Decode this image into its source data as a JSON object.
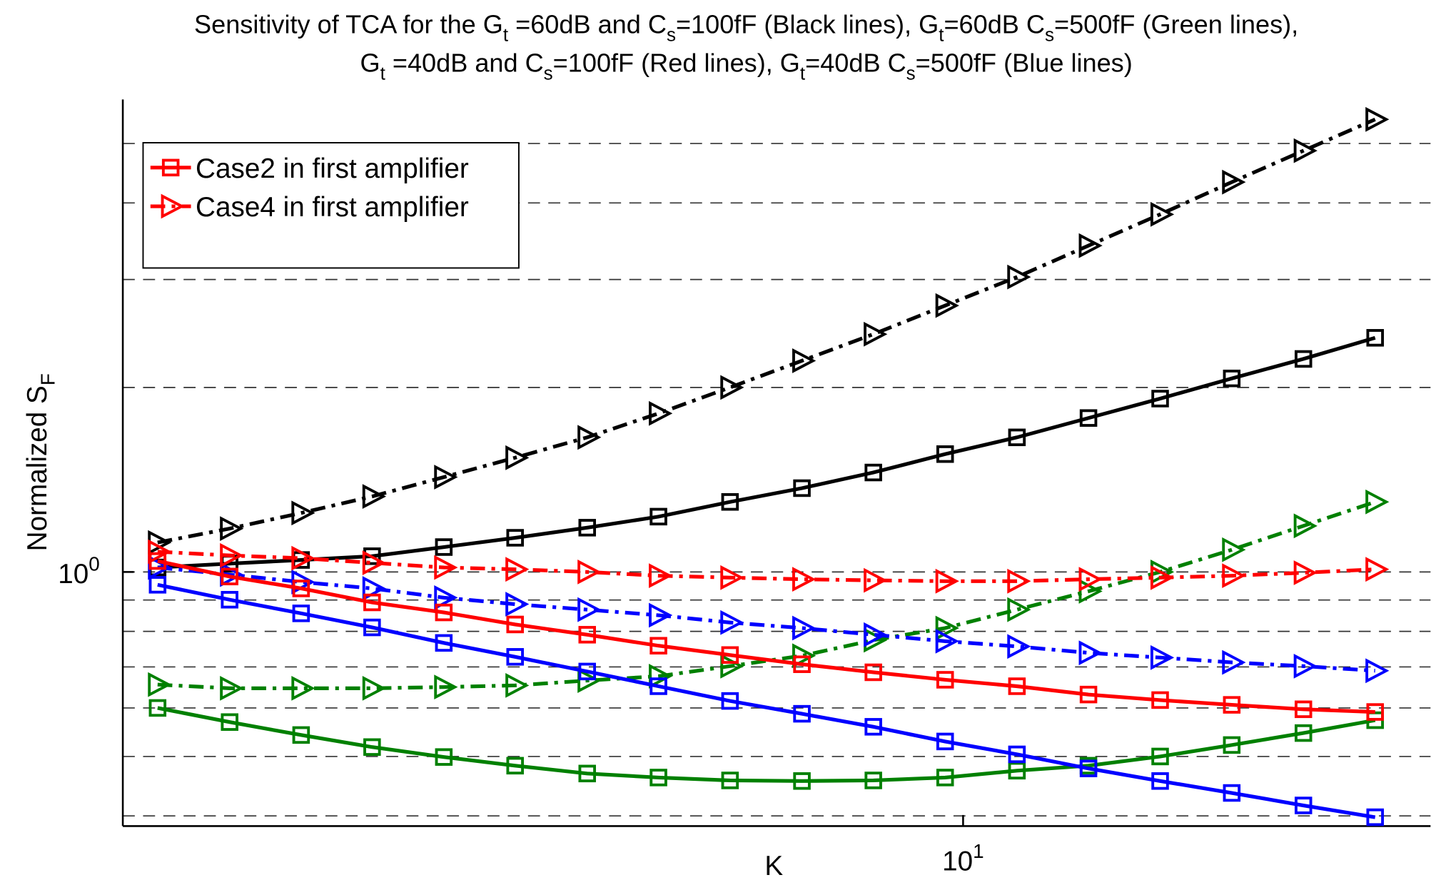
{
  "chart_data": {
    "type": "line",
    "title": [
      [
        "Sensitivity of TCA for the G",
        "t",
        " =60dB and C",
        "s",
        "=100fF (Black lines), G",
        "t",
        "=60dB C",
        "s",
        "=500fF (Green lines),"
      ],
      [
        "G",
        "t",
        " =40dB and C",
        "s",
        "=100fF (Red lines), G",
        "t",
        "=40dB C",
        "s",
        "=500fF (Blue lines)"
      ]
    ],
    "x_label": "K",
    "y_label": [
      "Normalized S",
      "F"
    ],
    "x_scale": "log",
    "y_scale": "log",
    "xlim": [
      1,
      36
    ],
    "ylim": [
      0.385,
      5.9
    ],
    "xticks": [
      {
        "value": 10,
        "label": [
          "10",
          "1"
        ]
      }
    ],
    "yticks": [
      {
        "value": 1,
        "label": [
          "10",
          "0"
        ]
      }
    ],
    "grid_y": [
      0.4,
      0.5,
      0.6,
      0.7,
      0.8,
      0.9,
      1,
      2,
      3,
      4,
      5
    ],
    "legend_position": "upper left",
    "x": [
      1.1,
      1.34,
      1.63,
      1.98,
      2.41,
      2.93,
      3.57,
      4.34,
      5.28,
      6.43,
      7.82,
      9.52,
      11.59,
      14.1,
      17.16,
      20.88,
      25.41,
      30.93
    ],
    "series": [
      {
        "color": "#000000",
        "line_style": "dashdot",
        "marker": "triangle-right",
        "values": [
          1.117,
          1.177,
          1.248,
          1.328,
          1.428,
          1.536,
          1.658,
          1.814,
          2.0,
          2.211,
          2.443,
          2.72,
          3.028,
          3.407,
          3.832,
          4.325,
          4.867,
          5.474
        ]
      },
      {
        "color": "#000000",
        "line_style": "solid",
        "marker": "square",
        "values": [
          1.017,
          1.032,
          1.046,
          1.061,
          1.098,
          1.137,
          1.181,
          1.231,
          1.301,
          1.37,
          1.453,
          1.557,
          1.658,
          1.783,
          1.918,
          2.069,
          2.226,
          2.41
        ]
      },
      {
        "color": "#008000",
        "line_style": "dashdot",
        "marker": "triangle-right",
        "values": [
          0.655,
          0.646,
          0.646,
          0.646,
          0.649,
          0.653,
          0.665,
          0.676,
          0.702,
          0.73,
          0.774,
          0.81,
          0.868,
          0.93,
          1.0,
          1.087,
          1.189,
          1.301
        ]
      },
      {
        "color": "#008000",
        "line_style": "solid",
        "marker": "square",
        "values": [
          0.6,
          0.569,
          0.542,
          0.518,
          0.499,
          0.483,
          0.469,
          0.462,
          0.457,
          0.456,
          0.457,
          0.462,
          0.474,
          0.483,
          0.5,
          0.522,
          0.546,
          0.573
        ]
      },
      {
        "color": "#0000ff",
        "line_style": "dashdot",
        "marker": "triangle-right",
        "values": [
          1.017,
          0.99,
          0.963,
          0.94,
          0.908,
          0.886,
          0.868,
          0.85,
          0.827,
          0.81,
          0.79,
          0.771,
          0.756,
          0.738,
          0.725,
          0.712,
          0.702,
          0.69
        ]
      },
      {
        "color": "#0000ff",
        "line_style": "solid",
        "marker": "square",
        "values": [
          0.953,
          0.901,
          0.856,
          0.812,
          0.766,
          0.727,
          0.688,
          0.651,
          0.616,
          0.587,
          0.559,
          0.529,
          0.504,
          0.478,
          0.456,
          0.436,
          0.416,
          0.398
        ]
      },
      {
        "name": "Case2 in first amplifier",
        "color": "#ff0000",
        "line_style": "solid",
        "marker": "square",
        "values": [
          1.042,
          0.983,
          0.94,
          0.892,
          0.859,
          0.821,
          0.79,
          0.758,
          0.732,
          0.707,
          0.686,
          0.667,
          0.651,
          0.631,
          0.618,
          0.607,
          0.597,
          0.591
        ]
      },
      {
        "name": "Case4 in first amplifier",
        "color": "#ff0000",
        "line_style": "dashdot",
        "marker": "triangle-right",
        "values": [
          1.079,
          1.064,
          1.053,
          1.035,
          1.017,
          1.01,
          1.0,
          0.986,
          0.979,
          0.973,
          0.969,
          0.966,
          0.966,
          0.973,
          0.979,
          0.986,
          0.997,
          1.01
        ]
      }
    ]
  }
}
